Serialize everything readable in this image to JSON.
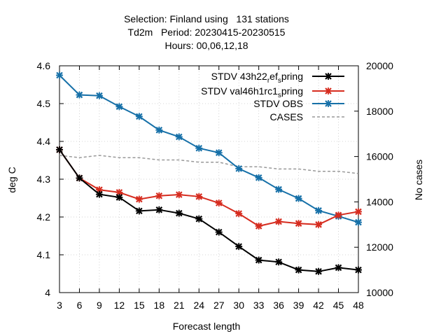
{
  "chart_data": {
    "type": "line",
    "title_lines": [
      "Selection: Finland using   131 stations",
      "Td2m   Period: 20230415-20230515",
      "Hours: 00,06,12,18"
    ],
    "xlabel": "Forecast length",
    "ylabel": "deg C",
    "y2label": "No cases",
    "x": [
      3,
      6,
      9,
      12,
      15,
      18,
      21,
      24,
      27,
      30,
      33,
      36,
      39,
      42,
      45,
      48
    ],
    "xticks": [
      "3",
      "6",
      "9",
      "12",
      "15",
      "18",
      "21",
      "24",
      "27",
      "30",
      "33",
      "36",
      "39",
      "42",
      "45",
      "48"
    ],
    "ylim": [
      4.0,
      4.6
    ],
    "yticks": [
      "4",
      "4.1",
      "4.2",
      "4.3",
      "4.4",
      "4.5",
      "4.6"
    ],
    "y2lim": [
      10000,
      20000
    ],
    "y2ticks": [
      "10000",
      "12000",
      "14000",
      "16000",
      "18000",
      "20000"
    ],
    "legend_position": "top-right",
    "series": [
      {
        "name": "STDV 43h22_ref_spring",
        "legend_parts": [
          "STDV 43h22",
          "r",
          "ef",
          "s",
          "pring"
        ],
        "axis": "y",
        "color": "#000000",
        "marker": "x",
        "values": [
          4.378,
          4.303,
          4.26,
          4.252,
          4.216,
          4.219,
          4.21,
          4.195,
          4.16,
          4.122,
          4.086,
          4.081,
          4.06,
          4.056,
          4.066,
          4.06
        ]
      },
      {
        "name": "STDV val46h1rc1_spring",
        "legend_parts": [
          "STDV val46h1rc1",
          "s",
          "pring"
        ],
        "axis": "y",
        "color": "#d62c1f",
        "marker": "x",
        "values": [
          4.378,
          4.303,
          4.272,
          4.265,
          4.247,
          4.256,
          4.259,
          4.254,
          4.237,
          4.209,
          4.176,
          4.188,
          4.183,
          4.18,
          4.205,
          4.214
        ]
      },
      {
        "name": "STDV OBS",
        "axis": "y",
        "color": "#1670a8",
        "marker": "x",
        "values": [
          4.575,
          4.523,
          4.521,
          4.492,
          4.466,
          4.43,
          4.412,
          4.382,
          4.37,
          4.328,
          4.304,
          4.273,
          4.249,
          4.217,
          4.202,
          4.186
        ]
      },
      {
        "name": "CASES",
        "axis": "y2",
        "color": "#999999",
        "dashed": true,
        "values": [
          16050,
          15950,
          16050,
          15950,
          15950,
          15850,
          15850,
          15750,
          15750,
          15550,
          15550,
          15450,
          15450,
          15350,
          15350,
          15250
        ]
      }
    ]
  }
}
